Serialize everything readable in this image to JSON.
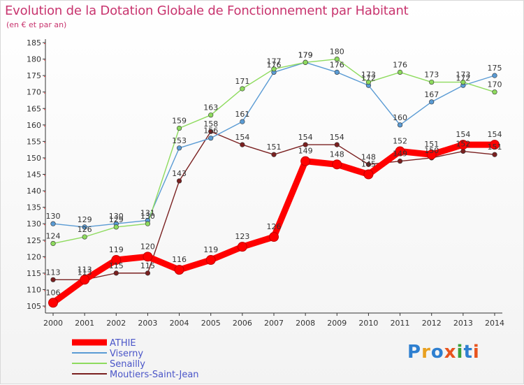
{
  "header": {
    "title": "Evolution de la Dotation Globale de Fonctionnement par Habitant",
    "subtitle": "(en € et par an)"
  },
  "logo": {
    "text": "Proxiti",
    "colors": [
      "#2e7fd0",
      "#e8a020",
      "#2e7fd0",
      "#e8541e",
      "#3aa03a",
      "#2e7fd0",
      "#e8541e"
    ]
  },
  "chart_data": {
    "type": "line",
    "title": "Evolution de la Dotation Globale de Fonctionnement par Habitant",
    "subtitle": "(en € et par an)",
    "xlabel": "",
    "ylabel": "",
    "x": [
      "2000",
      "2001",
      "2002",
      "2003",
      "2004",
      "2005",
      "2006",
      "2007",
      "2008",
      "2009",
      "2010",
      "2011",
      "2012",
      "2013",
      "2014"
    ],
    "ylim": [
      105,
      185
    ],
    "yticks": [
      105,
      110,
      115,
      120,
      125,
      130,
      135,
      140,
      145,
      150,
      155,
      160,
      165,
      170,
      175,
      180,
      185
    ],
    "grid": false,
    "legend_position": "bottom-left",
    "series": [
      {
        "name": "ATHIE",
        "color": "#ff0000",
        "values": [
          106,
          113,
          119,
          120,
          116,
          119,
          123,
          126,
          149,
          148,
          145,
          152,
          151,
          154,
          154
        ],
        "labels": [
          "106",
          "113",
          "119",
          "120",
          "116",
          "119",
          "123",
          "126",
          "149",
          "148",
          "145",
          "152",
          "151",
          "154",
          "154"
        ]
      },
      {
        "name": "Viserny",
        "color": "#5a9bd4",
        "values": [
          130,
          129,
          130,
          131,
          153,
          156,
          161,
          176,
          179,
          176,
          172,
          160,
          167,
          172,
          175
        ],
        "labels": [
          "130",
          "129",
          "130",
          "131",
          "153",
          "156",
          "161",
          "176",
          "179",
          "176",
          "172",
          "160",
          "167",
          "172",
          "175"
        ]
      },
      {
        "name": "Senailly",
        "color": "#8edb5e",
        "values": [
          124,
          126,
          129,
          130,
          159,
          163,
          171,
          177,
          179,
          180,
          173,
          176,
          173,
          173,
          170
        ],
        "labels": [
          "124",
          "126",
          "129",
          "130",
          "159",
          "163",
          "171",
          "177",
          "179",
          "180",
          "173",
          "176",
          "173",
          "173",
          "170"
        ]
      },
      {
        "name": "Moutiers-Saint-Jean",
        "color": "#7a2020",
        "values": [
          113,
          113,
          115,
          115,
          143,
          158,
          154,
          151,
          154,
          154,
          148,
          149,
          150,
          152,
          151
        ],
        "labels": [
          "113",
          "113",
          "115",
          "115",
          "143",
          "158",
          "154",
          "151",
          "154",
          "154",
          "148",
          "149",
          "150",
          "152",
          "151"
        ]
      }
    ]
  }
}
